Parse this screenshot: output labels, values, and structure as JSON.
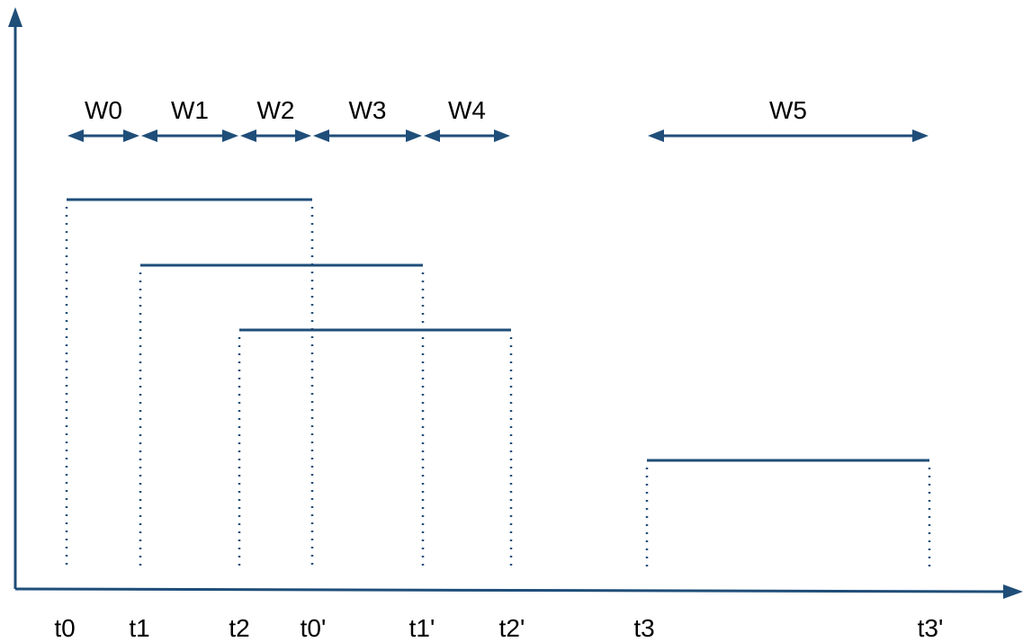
{
  "colors": {
    "line": "#1f4e79",
    "text": "#000000",
    "background": "#ffffff"
  },
  "time_labels": [
    {
      "id": "t0",
      "text": "t0"
    },
    {
      "id": "t1",
      "text": "t1"
    },
    {
      "id": "t2",
      "text": "t2"
    },
    {
      "id": "t0p",
      "text": "t0'"
    },
    {
      "id": "t1p",
      "text": "t1'"
    },
    {
      "id": "t2p",
      "text": "t2'"
    },
    {
      "id": "t3",
      "text": "t3"
    },
    {
      "id": "t3p",
      "text": "t3'"
    }
  ],
  "intervals": [
    {
      "start": "t0",
      "end": "t0p"
    },
    {
      "start": "t1",
      "end": "t1p"
    },
    {
      "start": "t2",
      "end": "t2p"
    },
    {
      "start": "t3",
      "end": "t3p"
    }
  ],
  "windows": [
    {
      "label": "W0",
      "start": "t0",
      "end": "t1"
    },
    {
      "label": "W1",
      "start": "t1",
      "end": "t2"
    },
    {
      "label": "W2",
      "start": "t2",
      "end": "t0p"
    },
    {
      "label": "W3",
      "start": "t0p",
      "end": "t1p"
    },
    {
      "label": "W4",
      "start": "t1p",
      "end": "t2p"
    },
    {
      "label": "W5",
      "start": "t3",
      "end": "t3p"
    }
  ]
}
